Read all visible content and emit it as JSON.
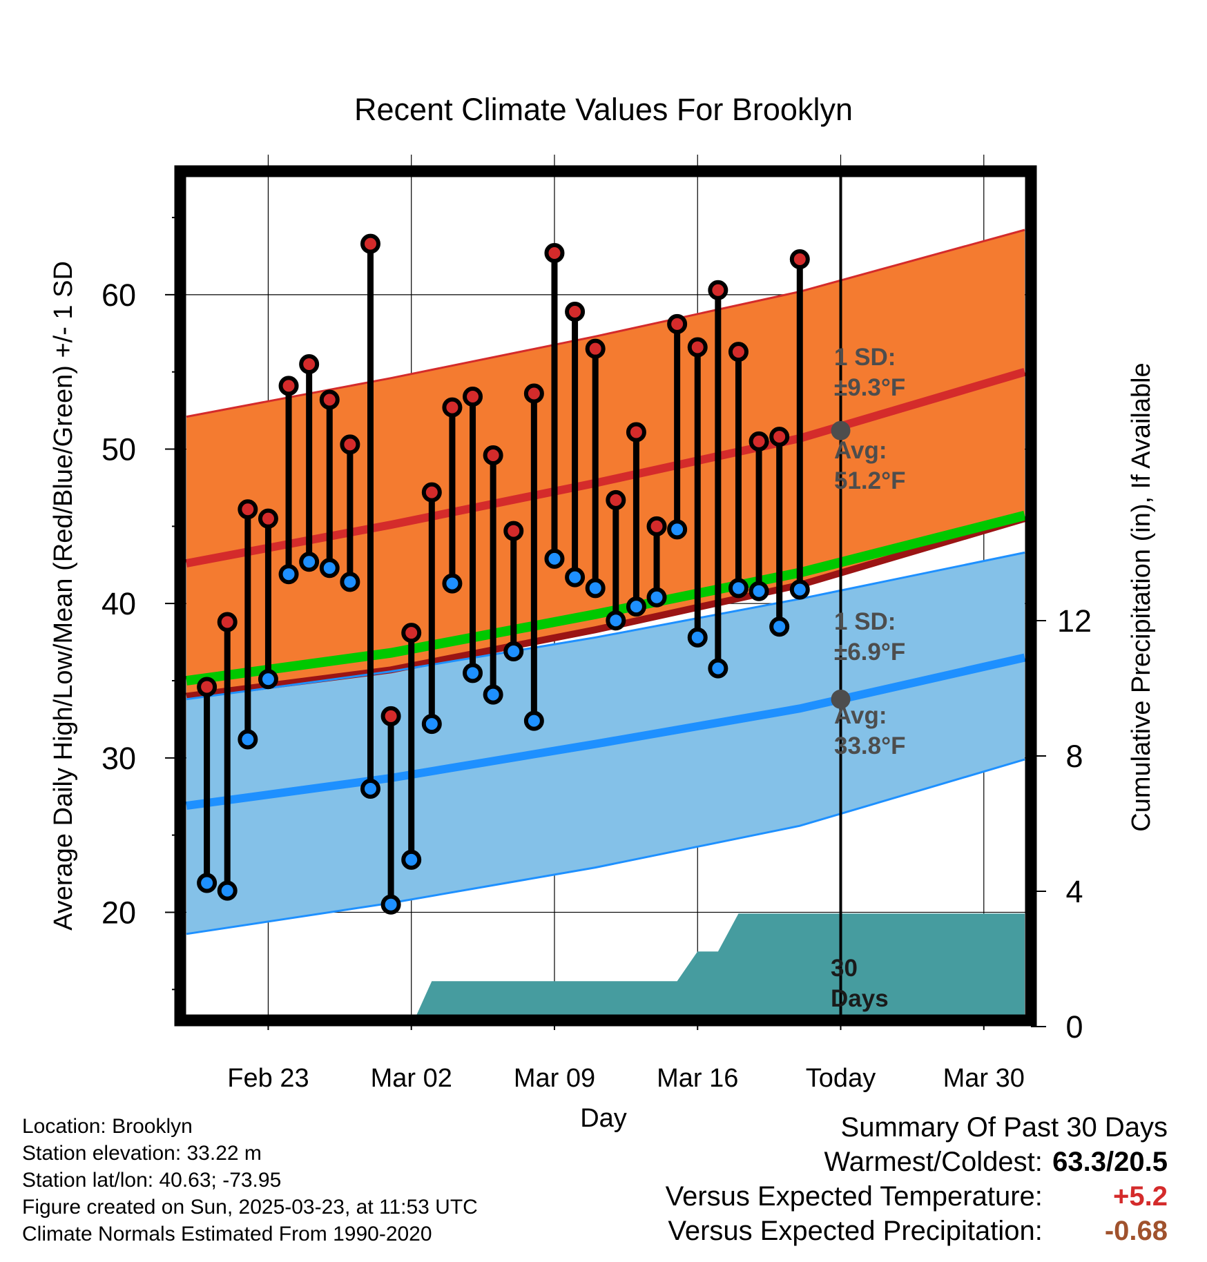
{
  "chart_data": {
    "type": "line",
    "title": "Recent Climate Values For Brooklyn",
    "xlabel": "Day",
    "ylabel": "Average Daily High/Low/Mean (Red/Blue/Green) +/- 1 SD",
    "y2label": "Cumulative Precipitation (in), If Available",
    "x_tick_labels": [
      "Feb 23",
      "Mar 02",
      "Mar 09",
      "Mar 16",
      "Today",
      "Mar 30"
    ],
    "y_ticks": [
      20,
      30,
      40,
      50,
      60
    ],
    "y2_ticks": [
      0,
      4,
      8,
      12
    ],
    "ylim": [
      13,
      68
    ],
    "y2lim": [
      0,
      24
    ],
    "x_range": [
      "2025-02-19",
      "2025-04-01"
    ],
    "today": "2025-03-23",
    "grid": true,
    "daily": [
      {
        "date": "2025-02-20",
        "high": 34.6,
        "low": 21.9
      },
      {
        "date": "2025-02-21",
        "high": 38.8,
        "low": 21.4
      },
      {
        "date": "2025-02-22",
        "high": 46.1,
        "low": 31.2
      },
      {
        "date": "2025-02-23",
        "high": 45.5,
        "low": 35.1
      },
      {
        "date": "2025-02-24",
        "high": 54.1,
        "low": 41.9
      },
      {
        "date": "2025-02-25",
        "high": 55.5,
        "low": 42.7
      },
      {
        "date": "2025-02-26",
        "high": 53.2,
        "low": 42.3
      },
      {
        "date": "2025-02-27",
        "high": 50.3,
        "low": 41.4
      },
      {
        "date": "2025-02-28",
        "high": 63.3,
        "low": 28.0
      },
      {
        "date": "2025-03-01",
        "high": 32.7,
        "low": 20.5
      },
      {
        "date": "2025-03-02",
        "high": 38.1,
        "low": 23.4
      },
      {
        "date": "2025-03-03",
        "high": 47.2,
        "low": 32.2
      },
      {
        "date": "2025-03-04",
        "high": 52.7,
        "low": 41.3
      },
      {
        "date": "2025-03-05",
        "high": 53.4,
        "low": 35.5
      },
      {
        "date": "2025-03-06",
        "high": 49.6,
        "low": 34.1
      },
      {
        "date": "2025-03-07",
        "high": 44.7,
        "low": 36.9
      },
      {
        "date": "2025-03-08",
        "high": 53.6,
        "low": 32.4
      },
      {
        "date": "2025-03-09",
        "high": 62.7,
        "low": 42.9
      },
      {
        "date": "2025-03-10",
        "high": 58.9,
        "low": 41.7
      },
      {
        "date": "2025-03-11",
        "high": 56.5,
        "low": 41.0
      },
      {
        "date": "2025-03-12",
        "high": 46.7,
        "low": 38.9
      },
      {
        "date": "2025-03-13",
        "high": 51.1,
        "low": 39.8
      },
      {
        "date": "2025-03-14",
        "high": 45.0,
        "low": 40.4
      },
      {
        "date": "2025-03-15",
        "high": 58.1,
        "low": 44.8
      },
      {
        "date": "2025-03-16",
        "high": 56.6,
        "low": 37.8
      },
      {
        "date": "2025-03-17",
        "high": 60.3,
        "low": 35.8
      },
      {
        "date": "2025-03-18",
        "high": 56.3,
        "low": 41.0
      },
      {
        "date": "2025-03-19",
        "high": 50.5,
        "low": 40.8
      },
      {
        "date": "2025-03-20",
        "high": 50.8,
        "low": 38.5
      },
      {
        "date": "2025-03-21",
        "high": 62.3,
        "low": 40.9
      }
    ],
    "normals": {
      "dates": [
        "2025-02-19",
        "2025-03-01",
        "2025-03-11",
        "2025-03-21",
        "2025-04-01"
      ],
      "high_avg": [
        42.6,
        45.1,
        47.8,
        50.7,
        55.0
      ],
      "high_upper": [
        52.1,
        54.6,
        57.3,
        60.2,
        64.2
      ],
      "high_lower": [
        34.0,
        35.7,
        38.3,
        41.2,
        45.5
      ],
      "mean_avg": [
        35.0,
        36.8,
        39.3,
        42.0,
        45.7
      ],
      "low_avg": [
        26.9,
        28.7,
        30.9,
        33.2,
        36.5
      ],
      "low_upper": [
        33.8,
        35.6,
        37.8,
        40.3,
        43.3
      ],
      "low_lower": [
        18.6,
        20.6,
        22.9,
        25.6,
        29.9
      ]
    },
    "precip_cumulative": [
      {
        "date": "2025-02-19",
        "value": 0
      },
      {
        "date": "2025-03-02",
        "value": 0
      },
      {
        "date": "2025-03-03",
        "value": 1.34
      },
      {
        "date": "2025-03-15",
        "value": 1.34
      },
      {
        "date": "2025-03-16",
        "value": 2.22
      },
      {
        "date": "2025-03-17",
        "value": 2.22
      },
      {
        "date": "2025-03-18",
        "value": 3.34
      },
      {
        "date": "2025-04-01",
        "value": 3.34
      }
    ],
    "annotations": {
      "high_sd": [
        "1 SD:",
        "±9.3°F"
      ],
      "high_avg": [
        "Avg:",
        "51.2°F"
      ],
      "low_sd": [
        "1 SD:",
        "±6.9°F"
      ],
      "low_avg": [
        "Avg:",
        "33.8°F"
      ],
      "window": [
        "30",
        "Days"
      ]
    },
    "today_high_avg": 51.2,
    "today_low_avg": 33.8
  },
  "info": {
    "location": "Location: Brooklyn",
    "elevation": "Station elevation: 33.22 m",
    "latlon": "Station lat/lon: 40.63; -73.95",
    "created": "Figure created on Sun, 2025-03-23, at 11:53 UTC",
    "normals": "Climate Normals Estimated From 1990-2020"
  },
  "summary": {
    "title": "Summary Of Past 30 Days",
    "warmest_label": "Warmest/Coldest:",
    "warmest_value": "63.3/20.5",
    "temp_label": "Versus Expected Temperature:",
    "temp_value": "+5.2",
    "precip_label": "Versus Expected Precipitation:",
    "precip_value": "-0.68"
  },
  "colors": {
    "high_band": "#f47b30",
    "high_line": "#d42b2b",
    "high_edge": "#d42b2b",
    "low_band": "#84c1e8",
    "low_line": "#1e90ff",
    "low_edge": "#1e90ff",
    "mean_line": "#00c800",
    "overlap": "#9b1414",
    "precip": "#469c9f",
    "high_dot": "#d42b2b",
    "low_dot": "#1e90ff",
    "annotation": "#4d4d4d",
    "temp_value": "#d42b2b",
    "precip_value": "#a0522d"
  }
}
